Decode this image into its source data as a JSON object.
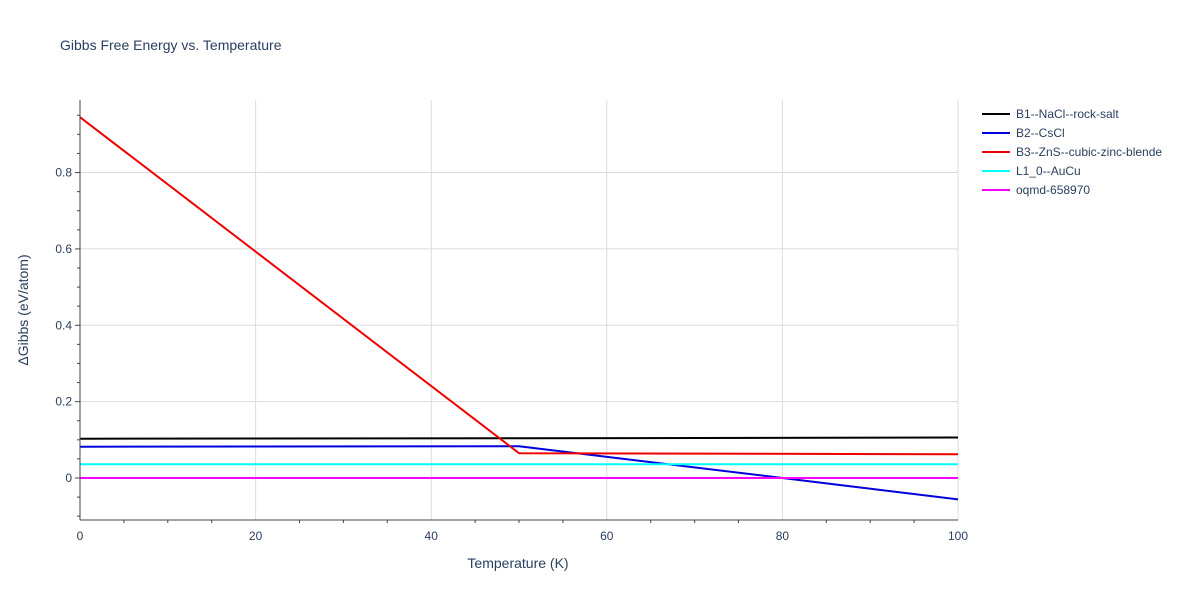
{
  "chart_data": {
    "type": "line",
    "title": "Gibbs Free Energy vs. Temperature",
    "xlabel": "Temperature (K)",
    "ylabel": "ΔGibbs (eV/atom)",
    "xlim": [
      0,
      100
    ],
    "ylim": [
      -0.11,
      0.99
    ],
    "x_ticks": [
      0,
      20,
      40,
      60,
      80,
      100
    ],
    "x_minor_ticks": [
      5,
      10,
      15,
      25,
      30,
      35,
      45,
      50,
      55,
      65,
      70,
      75,
      85,
      90,
      95
    ],
    "y_ticks": [
      0,
      0.2,
      0.4,
      0.6,
      0.8
    ],
    "y_tick_labels": [
      "0",
      "0.2",
      "0.4",
      "0.6",
      "0.8"
    ],
    "y_minor_ticks": [
      -0.1,
      -0.05,
      0.05,
      0.1,
      0.15,
      0.25,
      0.3,
      0.35,
      0.45,
      0.5,
      0.55,
      0.65,
      0.7,
      0.75,
      0.85,
      0.9,
      0.95
    ],
    "grid": true,
    "legend_position": "right",
    "series": [
      {
        "name": "B1--NaCl--rock-salt",
        "color": "#000000",
        "x": [
          0,
          50,
          100
        ],
        "y": [
          0.103,
          0.104,
          0.106
        ]
      },
      {
        "name": "B2--CsCl",
        "color": "#0000dd",
        "x": [
          0,
          50,
          80,
          100
        ],
        "y": [
          0.082,
          0.083,
          0.0,
          -0.056
        ]
      },
      {
        "name": "B3--ZnS--cubic-zinc-blende",
        "color": "#ee0000",
        "x": [
          0,
          50,
          100
        ],
        "y": [
          0.945,
          0.065,
          0.062
        ]
      },
      {
        "name": "L1_0--AuCu",
        "color": "#00ffff",
        "x": [
          0,
          100
        ],
        "y": [
          0.036,
          0.036
        ]
      },
      {
        "name": "oqmd-658970",
        "color": "#ff00ff",
        "x": [
          0,
          100
        ],
        "y": [
          0.0,
          0.0
        ]
      }
    ]
  }
}
